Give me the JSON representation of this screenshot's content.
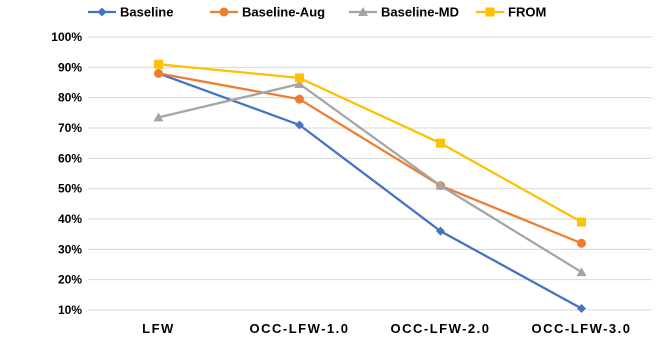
{
  "chart_data": {
    "type": "line",
    "title": "",
    "xlabel": "",
    "ylabel": "",
    "categories": [
      "LFW",
      "OCC-LFW-1.0",
      "OCC-LFW-2.0",
      "OCC-LFW-3.0"
    ],
    "ylim": [
      10,
      100
    ],
    "ytick_labels": [
      "10%",
      "20%",
      "30%",
      "40%",
      "50%",
      "60%",
      "70%",
      "80%",
      "90%",
      "100%"
    ],
    "grid": "horizontal",
    "legend_position": "top",
    "series": [
      {
        "name": "Baseline",
        "color": "#4472C4",
        "marker": "diamond",
        "values": [
          88,
          71,
          36,
          10.5
        ]
      },
      {
        "name": "Baseline-Aug",
        "color": "#ED7D31",
        "marker": "circle",
        "values": [
          88,
          79.5,
          51,
          32
        ]
      },
      {
        "name": "Baseline-MD",
        "color": "#A5A5A5",
        "marker": "triangle",
        "values": [
          73.5,
          84.5,
          51,
          22.5
        ]
      },
      {
        "name": "FROM",
        "color": "#FFC000",
        "marker": "square",
        "values": [
          91,
          86.5,
          65,
          39
        ]
      }
    ]
  }
}
